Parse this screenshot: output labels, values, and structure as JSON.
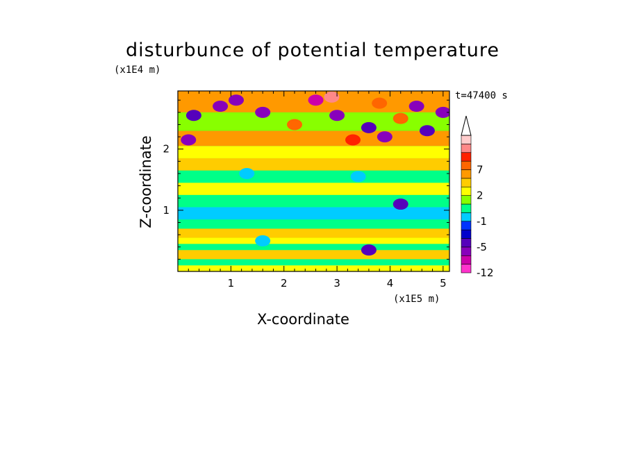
{
  "chart_data": {
    "type": "heatmap",
    "title": "disturbunce of potential temperature",
    "xlabel": "X-coordinate",
    "ylabel": "Z-coordinate",
    "x_unit": "(x1E5 m)",
    "y_unit": "(x1E4 m)",
    "time_label": "t=47400 s",
    "xlim": [
      0,
      5.12
    ],
    "ylim": [
      0,
      2.95
    ],
    "x_ticks": [
      1,
      2,
      3,
      4,
      5
    ],
    "x_tick_labels": [
      "1",
      "2",
      "3",
      "4",
      "5"
    ],
    "y_ticks": [
      1,
      2
    ],
    "y_tick_labels": [
      "1",
      "2"
    ],
    "colorbar": {
      "levels": [
        -12,
        -10,
        -8,
        -5,
        -4,
        -3,
        -1,
        0,
        1,
        2,
        3,
        5,
        7,
        8,
        9,
        10
      ],
      "level_labels": [
        "-12",
        "-5",
        "-1",
        "2",
        "7"
      ],
      "label_values": [
        -12,
        -5,
        -1,
        2,
        7
      ],
      "colors": [
        "#ff33cc",
        "#cc00aa",
        "#8800bb",
        "#5500bb",
        "#0000cc",
        "#0033ff",
        "#00ccff",
        "#00ff88",
        "#88ff00",
        "#ffff00",
        "#ffcc00",
        "#ff9900",
        "#ff6600",
        "#ff2200",
        "#ff8888",
        "#ffcccc"
      ],
      "extend": "max"
    },
    "bands": [
      {
        "z_min": 0.0,
        "z_max": 0.1,
        "value": 2
      },
      {
        "z_min": 0.1,
        "z_max": 0.2,
        "value": 0.5
      },
      {
        "z_min": 0.2,
        "z_max": 0.35,
        "value": 3
      },
      {
        "z_min": 0.35,
        "z_max": 0.45,
        "value": 0.5
      },
      {
        "z_min": 0.45,
        "z_max": 0.55,
        "value": 2
      },
      {
        "z_min": 0.55,
        "z_max": 0.7,
        "value": 3
      },
      {
        "z_min": 0.7,
        "z_max": 0.85,
        "value": 0.5
      },
      {
        "z_min": 0.85,
        "z_max": 1.05,
        "value": -1
      },
      {
        "z_min": 1.05,
        "z_max": 1.25,
        "value": 0.5
      },
      {
        "z_min": 1.25,
        "z_max": 1.45,
        "value": 2
      },
      {
        "z_min": 1.45,
        "z_max": 1.65,
        "value": 0.5
      },
      {
        "z_min": 1.65,
        "z_max": 1.85,
        "value": 3
      },
      {
        "z_min": 1.85,
        "z_max": 2.05,
        "value": 2
      },
      {
        "z_min": 2.05,
        "z_max": 2.3,
        "value": 5
      },
      {
        "z_min": 2.3,
        "z_max": 2.6,
        "value": 1
      },
      {
        "z_min": 2.6,
        "z_max": 2.95,
        "value": 5
      }
    ],
    "cells": [
      {
        "x": 0.8,
        "z": 2.7,
        "value": -8
      },
      {
        "x": 1.1,
        "z": 2.8,
        "value": -8
      },
      {
        "x": 0.3,
        "z": 2.55,
        "value": -5
      },
      {
        "x": 0.2,
        "z": 2.15,
        "value": -8
      },
      {
        "x": 1.6,
        "z": 2.6,
        "value": -8
      },
      {
        "x": 2.6,
        "z": 2.8,
        "value": -10
      },
      {
        "x": 2.9,
        "z": 2.85,
        "value": 9
      },
      {
        "x": 3.0,
        "z": 2.55,
        "value": -8
      },
      {
        "x": 3.3,
        "z": 2.15,
        "value": 8
      },
      {
        "x": 3.6,
        "z": 2.35,
        "value": -5
      },
      {
        "x": 3.9,
        "z": 2.2,
        "value": -8
      },
      {
        "x": 4.2,
        "z": 2.5,
        "value": 7
      },
      {
        "x": 4.5,
        "z": 2.7,
        "value": -8
      },
      {
        "x": 4.7,
        "z": 2.3,
        "value": -5
      },
      {
        "x": 5.0,
        "z": 2.6,
        "value": -8
      },
      {
        "x": 3.8,
        "z": 2.75,
        "value": 7
      },
      {
        "x": 2.2,
        "z": 2.4,
        "value": 7
      },
      {
        "x": 1.3,
        "z": 1.6,
        "value": -1
      },
      {
        "x": 1.6,
        "z": 0.5,
        "value": -1
      },
      {
        "x": 3.4,
        "z": 1.55,
        "value": -1
      },
      {
        "x": 4.2,
        "z": 1.1,
        "value": -5
      },
      {
        "x": 3.6,
        "z": 0.35,
        "value": -5
      }
    ]
  }
}
